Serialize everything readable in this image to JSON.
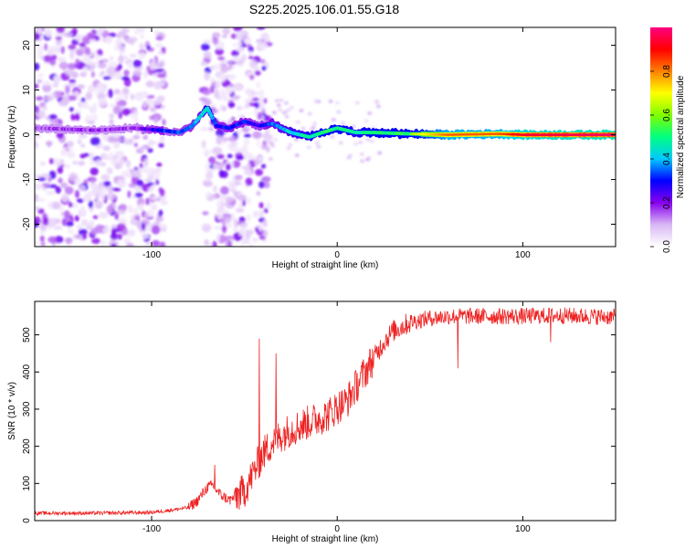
{
  "title": "S225.2025.106.01.55.G18",
  "chart_data": [
    {
      "type": "heatmap",
      "xlabel": "Height of straight line (km)",
      "ylabel": "Frequency (Hz)",
      "xlim": [
        -163,
        150
      ],
      "ylim": [
        -25,
        24
      ],
      "x_ticks": [
        -100,
        0,
        100
      ],
      "y_ticks": [
        -20,
        -10,
        0,
        10,
        20
      ],
      "grid": false,
      "colorbar": {
        "label": "Normalized spectral amplitude",
        "range": [
          0.0,
          1.0
        ],
        "ticks": [
          "0.0",
          "0.2",
          "0.4",
          "0.6",
          "0.8"
        ],
        "tick_values": [
          0.0,
          0.2,
          0.4,
          0.6,
          0.8
        ],
        "colors": [
          "#ffffff",
          "#d9b8f5",
          "#8800ee",
          "#0000ff",
          "#00c8ff",
          "#00ff80",
          "#80ff00",
          "#ffff00",
          "#ff8000",
          "#ff0000",
          "#ff0080"
        ]
      },
      "ridge": {
        "description_points_x": [
          -163,
          -130,
          -110,
          -95,
          -85,
          -78,
          -74,
          -70,
          -65,
          -58,
          -50,
          -42,
          -35,
          -25,
          -15,
          -8,
          0,
          10,
          20,
          40,
          60,
          87,
          100,
          150
        ],
        "description_points_y": [
          1.5,
          1.0,
          1.5,
          1.0,
          0.5,
          2.0,
          4.0,
          6.0,
          2.0,
          1.5,
          3.0,
          2.0,
          2.5,
          0.5,
          -0.5,
          0.5,
          1.5,
          0.5,
          0.5,
          0.2,
          0.0,
          0.2,
          0.0,
          0.0
        ],
        "amplitude": [
          0.15,
          0.15,
          0.15,
          0.3,
          0.35,
          0.4,
          0.45,
          0.5,
          0.3,
          0.3,
          0.3,
          0.25,
          0.35,
          0.45,
          0.5,
          0.55,
          0.55,
          0.5,
          0.55,
          0.55,
          0.75,
          0.75,
          0.85,
          0.9
        ]
      },
      "noise_regions": [
        [
          -163,
          -93
        ],
        [
          -72,
          -37
        ]
      ]
    },
    {
      "type": "line",
      "xlabel": "Height of straight line (km)",
      "ylabel": "SNR (10 * v/v)",
      "xlim": [
        -163,
        150
      ],
      "ylim": [
        0,
        590
      ],
      "x_ticks": [
        -100,
        0,
        100
      ],
      "y_ticks": [
        0,
        100,
        200,
        300,
        400,
        500
      ],
      "grid": false,
      "color": "#ee2222",
      "series": [
        {
          "envelope_x": [
            -163,
            -130,
            -100,
            -90,
            -80,
            -75,
            -70,
            -67,
            -63,
            -58,
            -50,
            -45,
            -40,
            -35,
            -30,
            -25,
            -20,
            -15,
            -10,
            -5,
            0,
            5,
            10,
            15,
            20,
            25,
            30,
            40,
            50,
            60,
            80,
            100,
            120,
            150
          ],
          "envelope_y": [
            20,
            20,
            22,
            28,
            35,
            55,
            90,
            95,
            70,
            55,
            80,
            130,
            180,
            210,
            230,
            245,
            255,
            265,
            275,
            285,
            305,
            320,
            360,
            400,
            440,
            480,
            510,
            535,
            545,
            550,
            550,
            550,
            552,
            548
          ],
          "spike_x": [
            -66,
            -42,
            -33,
            65,
            115
          ],
          "spike_y": [
            150,
            490,
            450,
            410,
            480
          ]
        }
      ]
    }
  ]
}
